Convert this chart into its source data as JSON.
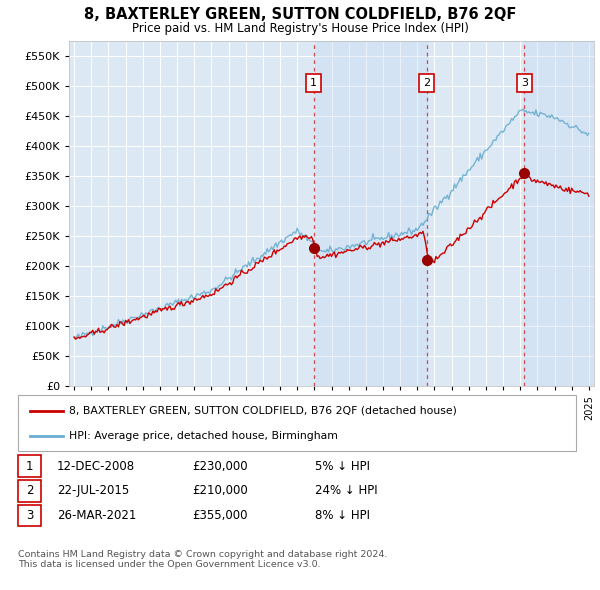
{
  "title": "8, BAXTERLEY GREEN, SUTTON COLDFIELD, B76 2QF",
  "subtitle": "Price paid vs. HM Land Registry's House Price Index (HPI)",
  "background_color": "#ffffff",
  "plot_bg_color": "#dce9f5",
  "grid_color": "#ffffff",
  "shade_color": "#c8d8ee",
  "ylim": [
    0,
    575000
  ],
  "yticks": [
    0,
    50000,
    100000,
    150000,
    200000,
    250000,
    300000,
    350000,
    400000,
    450000,
    500000,
    550000
  ],
  "sale_years": [
    2008.958,
    2015.554,
    2021.231
  ],
  "sale_prices": [
    230000,
    210000,
    355000
  ],
  "sale_labels": [
    "1",
    "2",
    "3"
  ],
  "legend_entries": [
    {
      "label": "8, BAXTERLEY GREEN, SUTTON COLDFIELD, B76 2QF (detached house)",
      "color": "#cc0000"
    },
    {
      "label": "HPI: Average price, detached house, Birmingham",
      "color": "#6aadcf"
    }
  ],
  "table_rows": [
    {
      "num": "1",
      "date": "12-DEC-2008",
      "price": "£230,000",
      "hpi": "5% ↓ HPI"
    },
    {
      "num": "2",
      "date": "22-JUL-2015",
      "price": "£210,000",
      "hpi": "24% ↓ HPI"
    },
    {
      "num": "3",
      "date": "26-MAR-2021",
      "price": "£355,000",
      "hpi": "8% ↓ HPI"
    }
  ],
  "footer": "Contains HM Land Registry data © Crown copyright and database right 2024.\nThis data is licensed under the Open Government Licence v3.0.",
  "start_year": 1995,
  "end_year": 2025
}
